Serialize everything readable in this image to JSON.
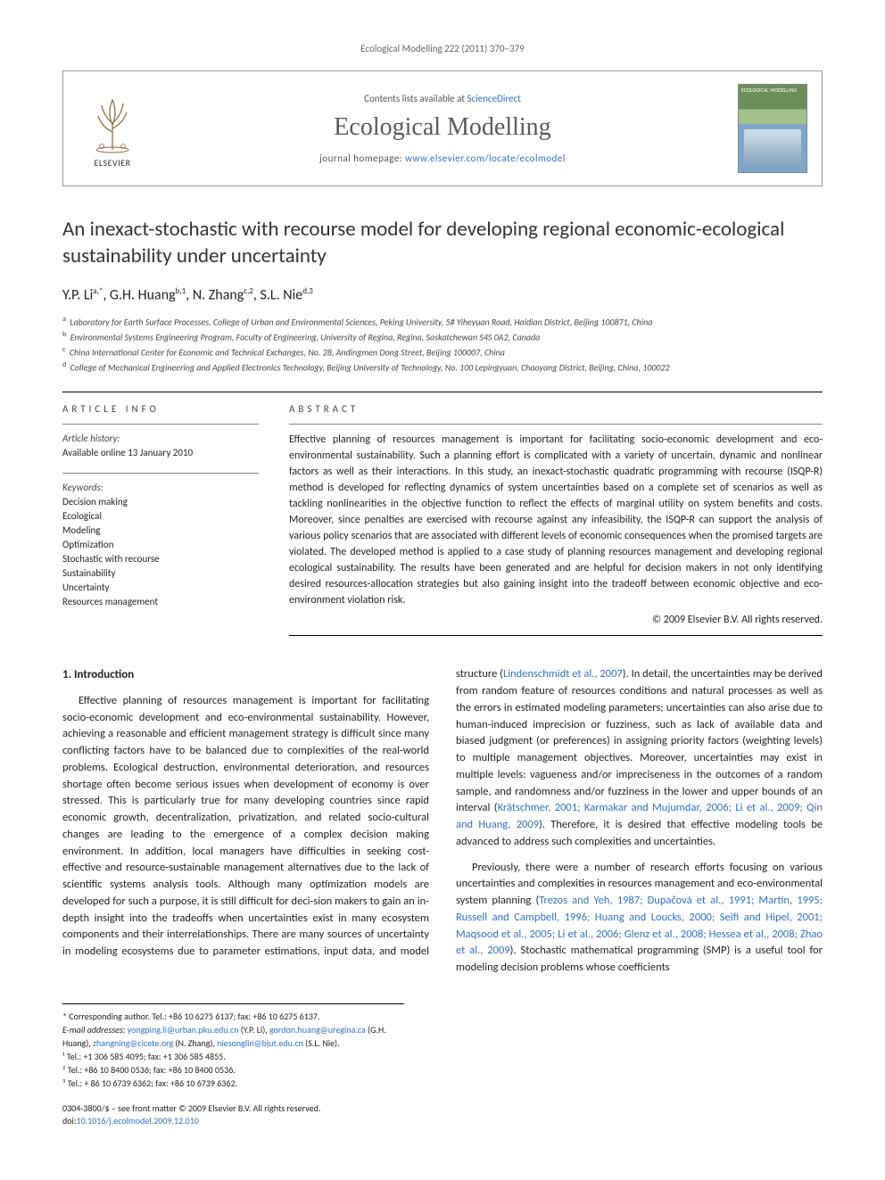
{
  "running_head": "Ecological Modelling 222 (2011) 370–379",
  "header": {
    "contents_prefix": "Contents lists available at ",
    "contents_link": "ScienceDirect",
    "journal_title": "Ecological Modelling",
    "homepage_prefix": "journal homepage: ",
    "homepage_link": "www.elsevier.com/locate/ecolmodel",
    "publisher": "ELSEVIER",
    "cover_label": "ECOLOGICAL MODELLING"
  },
  "title": "An inexact-stochastic with recourse model for developing regional economic-ecological sustainability under uncertainty",
  "authors_html": "Y.P. Li<sup>a,*</sup>, G.H. Huang<sup>b,1</sup>, N. Zhang<sup>c,2</sup>, S.L. Nie<sup>d,3</sup>",
  "affiliations": [
    {
      "sup": "a",
      "text": "Laboratory for Earth Surface Processes, College of Urban and Environmental Sciences, Peking University, 5# Yiheyuan Road, Haidian District, Beijing 100871, China"
    },
    {
      "sup": "b",
      "text": "Environmental Systems Engineering Program, Faculty of Engineering, University of Regina, Regina, Saskatchewan S4S 0A2, Canada"
    },
    {
      "sup": "c",
      "text": "China International Center for Economic and Technical Exchanges, No. 28, Andingmen Dong Street, Beijing 100007, China"
    },
    {
      "sup": "d",
      "text": "College of Mechanical Engineering and Applied Electronics Technology, Beijing University of Technology, No. 100 Lepingyuan, Chaoyang District, Beijing, China, 100022"
    }
  ],
  "info": {
    "heading": "ARTICLE INFO",
    "history_label": "Article history:",
    "history_text": "Available online 13 January 2010",
    "keywords_label": "Keywords:",
    "keywords": [
      "Decision making",
      "Ecological",
      "Modeling",
      "Optimization",
      "Stochastic with recourse",
      "Sustainability",
      "Uncertainty",
      "Resources management"
    ]
  },
  "abstract": {
    "heading": "ABSTRACT",
    "text": "Effective planning of resources management is important for facilitating socio-economic development and eco-environmental sustainability. Such a planning effort is complicated with a variety of uncertain, dynamic and nonlinear factors as well as their interactions. In this study, an inexact-stochastic quadratic programming with recourse (ISQP-R) method is developed for reflecting dynamics of system uncertainties based on a complete set of scenarios as well as tackling nonlinearities in the objective function to reflect the effects of marginal utility on system benefits and costs. Moreover, since penalties are exercised with recourse against any infeasibility, the ISQP-R can support the analysis of various policy scenarios that are associated with different levels of economic consequences when the promised targets are violated. The developed method is applied to a case study of planning resources management and developing regional ecological sustainability. The results have been generated and are helpful for decision makers in not only identifying desired resources-allocation strategies but also gaining insight into the tradeoff between economic objective and eco-environment violation risk.",
    "copyright": "© 2009 Elsevier B.V. All rights reserved."
  },
  "body": {
    "section_heading": "1.  Introduction",
    "p1": "Effective planning of resources management is important for facilitating socio-economic development and eco-environmental sustainability. However, achieving a reasonable and efficient management strategy is difficult since many conflicting factors have to be balanced due to complexities of the real-world problems. Ecological destruction, environmental deterioration, and resources shortage often become serious issues when development of economy is over stressed. This is particularly true for many developing countries since rapid economic growth, decentralization, privatization, and related socio-cultural changes are leading to the emergence of a complex decision making environment. In addition, local managers have difficulties in seeking cost-effective and resource-sustainable management alternatives due to the lack of scientific systems analysis tools. Although many optimization models are developed for such a purpose, it is still difficult for deci-",
    "p1b": "sion makers to gain an in-depth insight into the tradeoffs when uncertainties exist in many ecosystem components and their interrelationships. There are many sources of uncertainty in modeling ecosystems due to parameter estimations, input data, and model structure (",
    "cite1": "Lindenschmidt et al., 2007",
    "p1c": "). In detail, the uncertainties may be derived from random feature of resources conditions and natural processes as well as the errors in estimated modeling parameters; uncertainties can also arise due to human-induced imprecision or fuzziness, such as lack of available data and biased judgment (or preferences) in assigning priority factors (weighting levels) to multiple management objectives. Moreover, uncertainties may exist in multiple levels: vagueness and/or impreciseness in the outcomes of a random sample, and randomness and/or fuzziness in the lower and upper bounds of an interval (",
    "cite2": "Krätschmer, 2001; Karmakar and Mujumdar, 2006; Li et al., 2009; Qin and Huang, 2009",
    "p1d": "). Therefore, it is desired that effective modeling tools be advanced to address such complexities and uncertainties.",
    "p2a": "Previously, there were a number of research efforts focusing on various uncertainties and complexities in resources management and eco-environmental system planning (",
    "cite3": "Trezos and Yeh, 1987; Dupačová et al., 1991; Martin, 1995; Russell and Campbell, 1996; Huang and Loucks, 2000; Seifi and Hipel, 2001; Maqsood et al., 2005; Li et al., 2006; Glenz et al., 2008; Hessea et al., 2008; Zhao et al., 2009",
    "p2b": "). Stochastic mathematical programming (SMP) is a useful tool for modeling decision problems whose coefficients"
  },
  "footnotes": {
    "corr_label": "* Corresponding author. Tel.: +86 10 6275 6137; fax: +86 10 6275 6137.",
    "email_label": "E-mail addresses:",
    "emails": [
      {
        "addr": "yongping.li@urban.pku.edu.cn",
        "who": "(Y.P. Li),"
      },
      {
        "addr": "gordon.huang@uregina.ca",
        "who": "(G.H. Huang),"
      },
      {
        "addr": "zhangning@cicete.org",
        "who": "(N. Zhang),"
      },
      {
        "addr": "niesonglin@bjut.edu.cn",
        "who": "(S.L. Nie)."
      }
    ],
    "notes": [
      "¹ Tel.: +1 306 585 4095; fax: +1 306 585 4855.",
      "² Tel.: +86 10 8400 0536; fax: +86 10 8400 0536.",
      "³ Tel.: + 86 10 6739 6362; fax: +86 10 6739 6362."
    ]
  },
  "front_matter": {
    "line1": "0304-3800/$ – see front matter © 2009 Elsevier B.V. All rights reserved.",
    "doi_label": "doi:",
    "doi": "10.1016/j.ecolmodel.2009.12.010"
  },
  "colors": {
    "link": "#2e72c8",
    "text": "#222222",
    "muted": "#666666",
    "rule": "#000000"
  }
}
